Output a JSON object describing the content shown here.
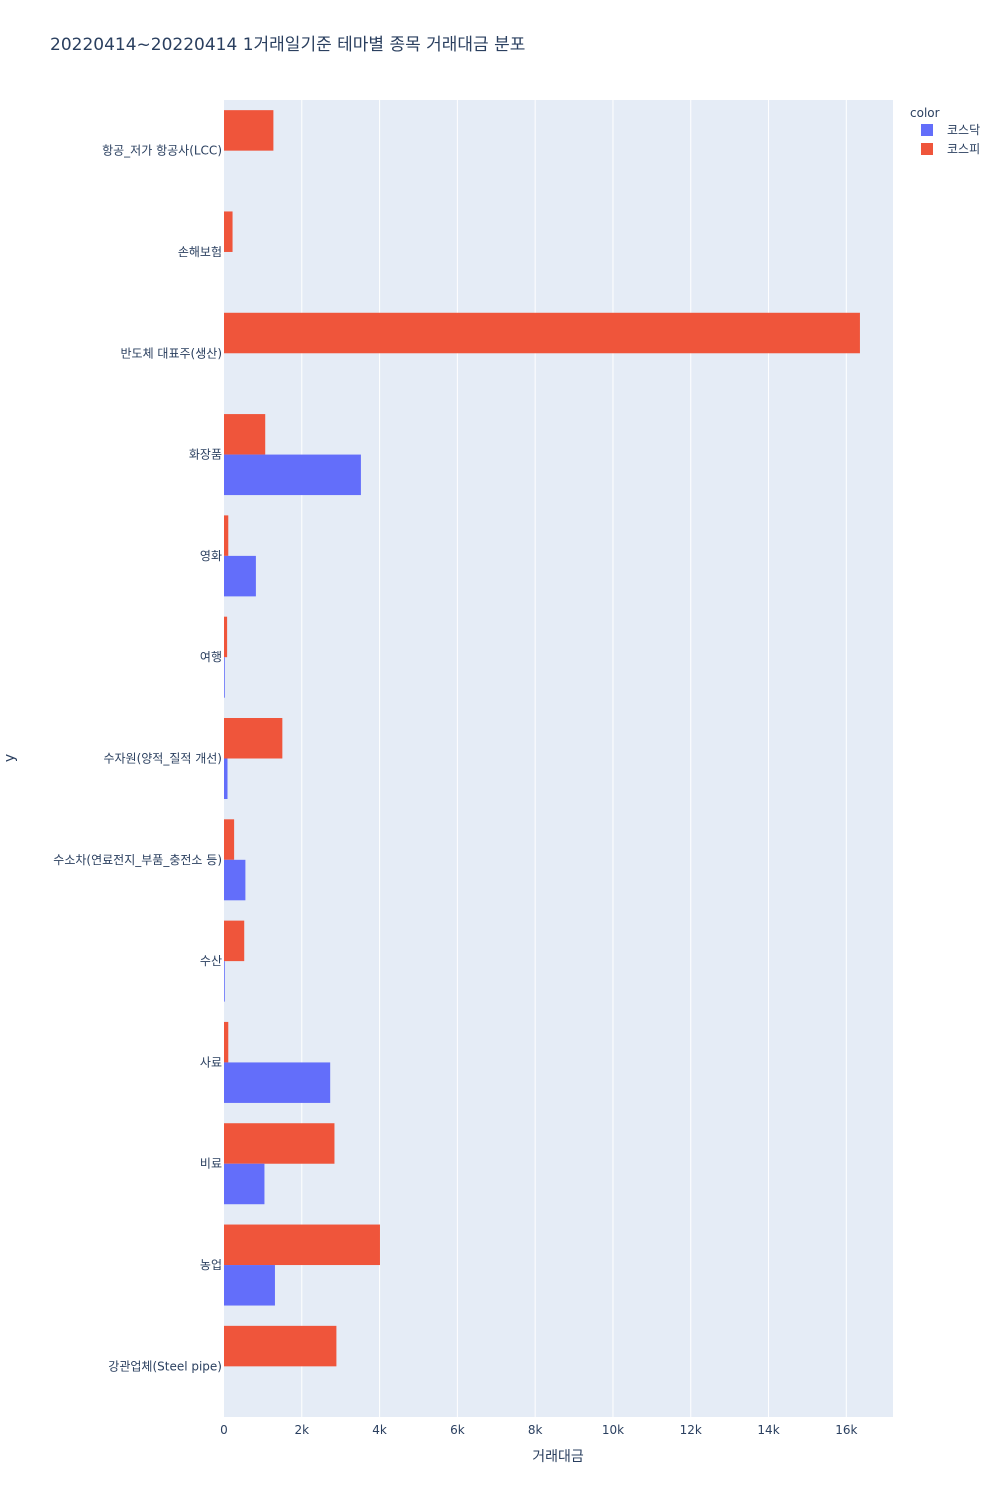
{
  "chart_data": {
    "type": "bar",
    "orientation": "horizontal",
    "barmode": "group",
    "title": "20220414~20220414 1거래일기준 테마별 종목 거래대금 분포",
    "xlabel": "거래대금",
    "ylabel": "y",
    "xlim": [
      0,
      17200
    ],
    "x_ticks": [
      0,
      2000,
      4000,
      6000,
      8000,
      10000,
      12000,
      14000,
      16000
    ],
    "x_tick_labels": [
      "0",
      "2k",
      "4k",
      "6k",
      "8k",
      "10k",
      "12k",
      "14k",
      "16k"
    ],
    "grid": true,
    "legend": {
      "title": "color",
      "position": "top-right"
    },
    "categories": [
      "항공_저가 항공사(LCC)",
      "손해보험",
      "반도체 대표주(생산)",
      "화장품",
      "영화",
      "여행",
      "수자원(양적_질적 개선)",
      "수소차(연료전지_부품_충전소 등)",
      "수산",
      "사료",
      "비료",
      "농업",
      "강관업체(Steel pipe)"
    ],
    "series": [
      {
        "name": "코스닥",
        "color": "#636efa",
        "values": [
          0,
          0,
          0,
          3520,
          820,
          20,
          90,
          550,
          20,
          2730,
          1040,
          1310,
          0
        ]
      },
      {
        "name": "코스피",
        "color": "#ef553b",
        "values": [
          1270,
          220,
          16350,
          1060,
          110,
          80,
          1500,
          260,
          520,
          110,
          2840,
          4010,
          2890
        ]
      }
    ]
  },
  "colors": {
    "plot_bg": "#e5ecf6",
    "grid": "#ffffff",
    "text": "#2a3f5f"
  }
}
